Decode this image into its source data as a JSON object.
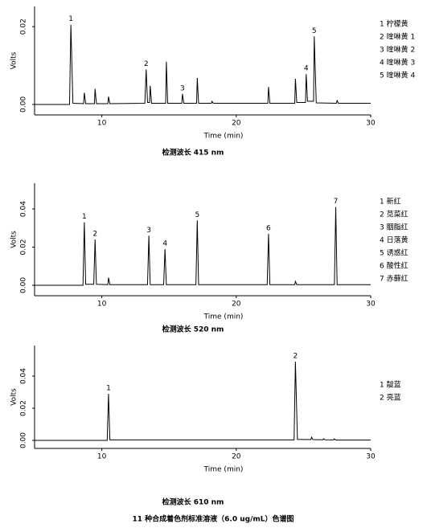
{
  "title": "11 种合成着色剂标准溶液（6.0 ug/mL）色谱图",
  "chart_data": [
    {
      "type": "line",
      "caption": "检测波长 415 nm",
      "xlabel": "Time (min)",
      "ylabel": "Volts",
      "xlim": [
        5,
        30
      ],
      "xticks": [
        10,
        20,
        30
      ],
      "ylim": [
        -0.0027,
        0.0252
      ],
      "yticks": [
        {
          "value": 0,
          "label": "0.00"
        },
        {
          "value": 0.02,
          "label": "0.02"
        }
      ],
      "legend": [
        "1 柠檬黄",
        "2 喹啉黄 1",
        "3 喹啉黄 2",
        "4 喹啉黄 3",
        "5 喹啉黄 4"
      ],
      "x": [
        5,
        7.6,
        7.7,
        7.85,
        8.65,
        8.7,
        8.8,
        9.45,
        9.5,
        9.6,
        10.45,
        10.5,
        10.6,
        13.2,
        13.3,
        13.4,
        13.55,
        13.6,
        13.7,
        14.75,
        14.8,
        14.9,
        15.95,
        16.0,
        16.1,
        17.05,
        17.1,
        17.2,
        18.15,
        18.2,
        18.3,
        22.35,
        22.4,
        22.5,
        24.35,
        24.4,
        24.5,
        25.15,
        25.2,
        25.3,
        25.75,
        25.8,
        25.95,
        27.45,
        27.5,
        27.6,
        30
      ],
      "series": [
        {
          "color": "#000000",
          "values": [
            0,
            0,
            0.0205,
            0.0003,
            0.0002,
            0.003,
            0.0002,
            0.0002,
            0.004,
            0.0002,
            0.0002,
            0.002,
            0.0002,
            0.0003,
            0.009,
            0.0005,
            0.0005,
            0.0048,
            0.0003,
            0.0003,
            0.011,
            0.0003,
            0.0003,
            0.0027,
            0.0003,
            0.0003,
            0.0068,
            0.0003,
            0.0003,
            0.0008,
            0.0003,
            0.0003,
            0.0045,
            0.0003,
            0.0003,
            0.0066,
            0.0005,
            0.0005,
            0.0078,
            0.0008,
            0.0008,
            0.0175,
            0.0004,
            0.0003,
            0.001,
            0.0003,
            0.0003
          ]
        }
      ],
      "annotations": [
        {
          "text": "1",
          "x": 7.7
        },
        {
          "text": "2",
          "x": 13.3
        },
        {
          "text": "3",
          "x": 16.0
        },
        {
          "text": "4",
          "x": 25.2
        },
        {
          "text": "5",
          "x": 25.8
        }
      ]
    },
    {
      "type": "line",
      "caption": "检测波长 520 nm",
      "xlabel": "Time (min)",
      "ylabel": "Volts",
      "xlim": [
        5,
        30
      ],
      "xticks": [
        10,
        20,
        30
      ],
      "ylim": [
        -0.0055,
        0.0535
      ],
      "yticks": [
        {
          "value": 0,
          "label": "0.00"
        },
        {
          "value": 0.02,
          "label": "0.02"
        },
        {
          "value": 0.04,
          "label": "0.04"
        }
      ],
      "legend": [
        "1 新红",
        "2 苋菜红",
        "3 胭脂红",
        "4 日落黄",
        "5 诱惑红",
        "6 酸性红",
        "7 赤藓红"
      ],
      "x": [
        5,
        8.6,
        8.7,
        8.8,
        9.4,
        9.5,
        9.6,
        10.45,
        10.5,
        10.6,
        13.4,
        13.5,
        13.6,
        14.6,
        14.7,
        14.8,
        17.0,
        17.1,
        17.2,
        22.3,
        22.4,
        22.5,
        24.35,
        24.4,
        24.5,
        27.3,
        27.4,
        27.5,
        30
      ],
      "series": [
        {
          "color": "#000000",
          "values": [
            0,
            0,
            0.033,
            0.0005,
            0.0005,
            0.024,
            0.0005,
            0.0003,
            0.004,
            0.0003,
            0.0003,
            0.026,
            0.0003,
            0.0003,
            0.019,
            0.0003,
            0.0003,
            0.034,
            0.0003,
            0.0003,
            0.027,
            0.0003,
            0.0003,
            0.002,
            0.0003,
            0.0003,
            0.041,
            0.0003,
            0.0003
          ]
        }
      ],
      "annotations": [
        {
          "text": "1",
          "x": 8.7
        },
        {
          "text": "2",
          "x": 9.5
        },
        {
          "text": "3",
          "x": 13.5
        },
        {
          "text": "4",
          "x": 14.7
        },
        {
          "text": "5",
          "x": 17.1
        },
        {
          "text": "6",
          "x": 22.4
        },
        {
          "text": "7",
          "x": 27.4
        }
      ]
    },
    {
      "type": "line",
      "caption": "检测波长 610 nm",
      "xlabel": "Time (min)",
      "ylabel": "Volts",
      "xlim": [
        5,
        30
      ],
      "xticks": [
        10,
        20,
        30
      ],
      "ylim": [
        -0.005,
        0.059
      ],
      "yticks": [
        {
          "value": 0,
          "label": "0.00"
        },
        {
          "value": 0.02,
          "label": "0.02"
        },
        {
          "value": 0.04,
          "label": "0.04"
        }
      ],
      "legend": [
        "1 靛蓝",
        "2 亮蓝"
      ],
      "x": [
        5,
        10.4,
        10.5,
        10.6,
        24.3,
        24.4,
        24.55,
        25.55,
        25.6,
        25.7,
        26.45,
        26.5,
        26.6,
        27.25,
        27.3,
        27.4,
        30
      ],
      "series": [
        {
          "color": "#000000",
          "values": [
            0,
            0,
            0.029,
            0.0003,
            0.0003,
            0.049,
            0.0006,
            0.0005,
            0.002,
            0.0005,
            0.0004,
            0.001,
            0.0004,
            0.0003,
            0.001,
            0.0002,
            0.0002
          ]
        }
      ],
      "annotations": [
        {
          "text": "1",
          "x": 10.5
        },
        {
          "text": "2",
          "x": 24.4
        }
      ]
    }
  ]
}
